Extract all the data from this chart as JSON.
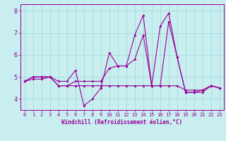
{
  "xlabel": "Windchill (Refroidissement éolien,°C)",
  "bg_color": "#c8eef0",
  "line_color": "#990099",
  "grid_color": "#a0d8d8",
  "xlim": [
    -0.5,
    23.5
  ],
  "ylim": [
    3.5,
    8.3
  ],
  "yticks": [
    4,
    5,
    6,
    7,
    8
  ],
  "xticks": [
    0,
    1,
    2,
    3,
    4,
    5,
    6,
    7,
    8,
    9,
    10,
    11,
    12,
    13,
    14,
    15,
    16,
    17,
    18,
    19,
    20,
    21,
    22,
    23
  ],
  "series1": [
    4.8,
    5.0,
    5.0,
    5.0,
    4.8,
    4.8,
    5.3,
    3.7,
    4.0,
    4.5,
    6.1,
    5.5,
    5.5,
    5.8,
    6.9,
    4.6,
    4.6,
    7.5,
    5.9,
    4.3,
    4.3,
    4.3,
    4.6,
    4.5
  ],
  "series2": [
    4.8,
    4.9,
    4.9,
    5.0,
    4.6,
    4.6,
    4.6,
    4.6,
    4.6,
    4.6,
    4.6,
    4.6,
    4.6,
    4.6,
    4.6,
    4.6,
    4.6,
    4.6,
    4.6,
    4.4,
    4.4,
    4.4,
    4.6,
    4.5
  ],
  "series3": [
    4.8,
    5.0,
    5.0,
    5.0,
    4.6,
    4.6,
    4.8,
    4.8,
    4.8,
    4.8,
    5.4,
    5.5,
    5.5,
    6.9,
    7.8,
    4.6,
    7.3,
    7.9,
    5.9,
    4.3,
    4.3,
    4.4,
    4.6,
    4.5
  ],
  "marker_size": 2.0,
  "line_width": 0.8,
  "tick_fontsize": 5.0,
  "xlabel_fontsize": 5.5
}
